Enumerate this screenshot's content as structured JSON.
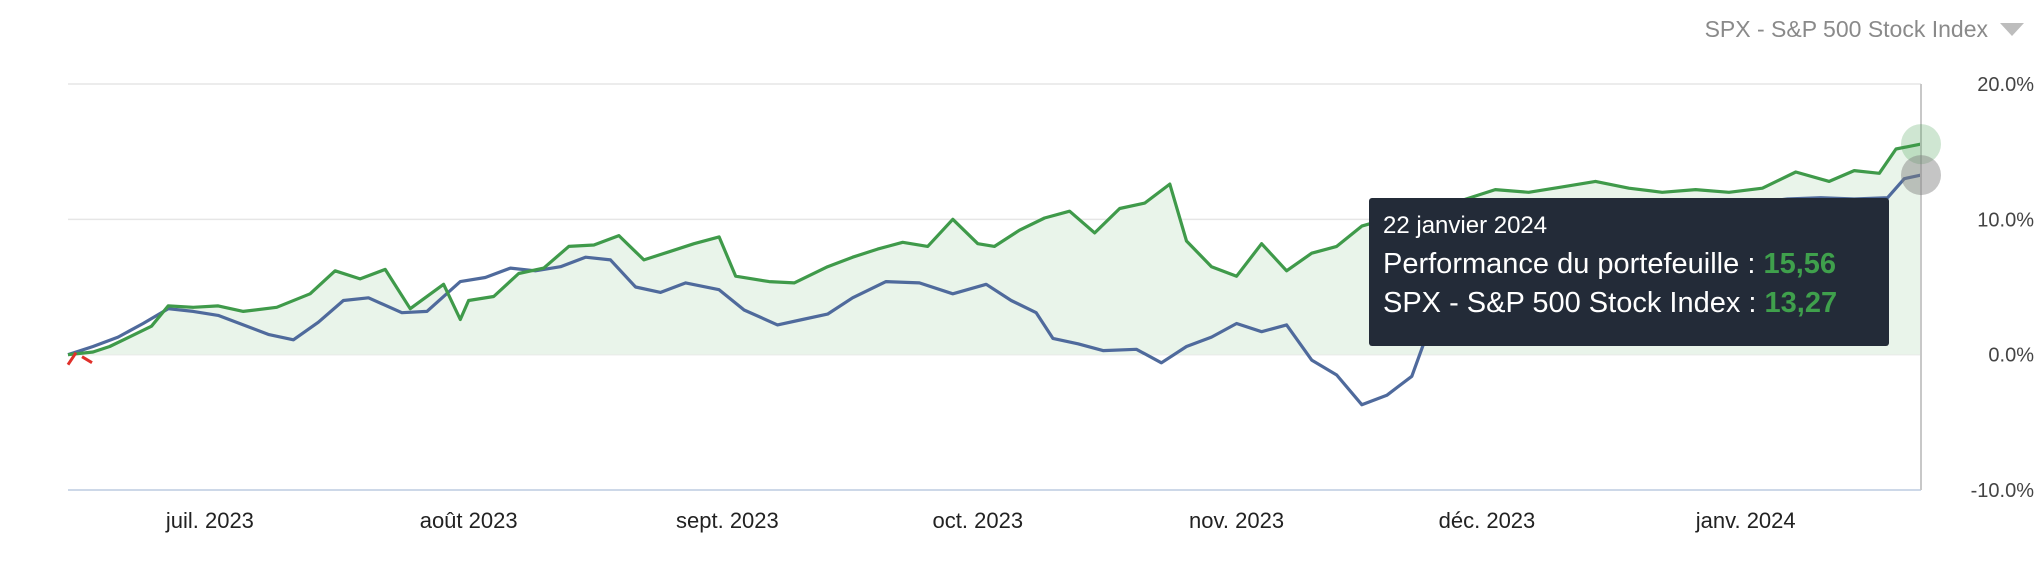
{
  "dropdown": {
    "label": "SPX - S&P 500 Stock Index",
    "icon": "caret-down-icon"
  },
  "tooltip": {
    "date": "22 janvier 2024",
    "rows": [
      {
        "label": "Performance du portefeuille : ",
        "value": "15,56"
      },
      {
        "label": "SPX - S&P 500 Stock Index : ",
        "value": "13,27"
      }
    ]
  },
  "colors": {
    "portfolio": "#3f9a4a",
    "index": "#4f6a9c",
    "negative_start": "#e0302a",
    "area": "#e9f4ea",
    "tooltip_bg": "#232b38",
    "grid": "#e6e6e6",
    "axis": "#cdd8e8"
  },
  "chart_data": {
    "type": "line",
    "title": "",
    "xlabel": "",
    "ylabel": "",
    "ylim": [
      -10,
      20
    ],
    "y_ticks": [
      "-10.0%",
      "0.0%",
      "10.0%",
      "20.0%"
    ],
    "y_tick_values": [
      -10,
      0,
      10,
      20
    ],
    "x_tick_labels": [
      "juil. 2023",
      "août 2023",
      "sept. 2023",
      "oct. 2023",
      "nov. 2023",
      "déc. 2023",
      "janv. 2024"
    ],
    "x_tick_dates": [
      "2023-07-01",
      "2023-08-01",
      "2023-09-01",
      "2023-10-01",
      "2023-11-01",
      "2023-12-01",
      "2024-01-01"
    ],
    "x_range": [
      "2023-06-14",
      "2024-01-22"
    ],
    "area_under": "Performance du portefeuille",
    "series": [
      {
        "name": "Performance du portefeuille",
        "points": [
          [
            "2023-06-14",
            0.0
          ],
          [
            "2023-06-17",
            0.2
          ],
          [
            "2023-06-19",
            0.6
          ],
          [
            "2023-06-21",
            1.2
          ],
          [
            "2023-06-24",
            2.1
          ],
          [
            "2023-06-26",
            3.6
          ],
          [
            "2023-06-29",
            3.5
          ],
          [
            "2023-07-02",
            3.6
          ],
          [
            "2023-07-05",
            3.2
          ],
          [
            "2023-07-09",
            3.5
          ],
          [
            "2023-07-13",
            4.5
          ],
          [
            "2023-07-16",
            6.2
          ],
          [
            "2023-07-19",
            5.6
          ],
          [
            "2023-07-22",
            6.3
          ],
          [
            "2023-07-25",
            3.4
          ],
          [
            "2023-07-29",
            5.2
          ],
          [
            "2023-07-31",
            2.6
          ],
          [
            "2023-08-01",
            4.0
          ],
          [
            "2023-08-04",
            4.3
          ],
          [
            "2023-08-07",
            6.0
          ],
          [
            "2023-08-10",
            6.4
          ],
          [
            "2023-08-13",
            8.0
          ],
          [
            "2023-08-16",
            8.1
          ],
          [
            "2023-08-19",
            8.8
          ],
          [
            "2023-08-22",
            7.0
          ],
          [
            "2023-08-25",
            7.6
          ],
          [
            "2023-08-28",
            8.2
          ],
          [
            "2023-08-31",
            8.7
          ],
          [
            "2023-09-02",
            5.8
          ],
          [
            "2023-09-06",
            5.4
          ],
          [
            "2023-09-09",
            5.3
          ],
          [
            "2023-09-13",
            6.5
          ],
          [
            "2023-09-16",
            7.2
          ],
          [
            "2023-09-19",
            7.8
          ],
          [
            "2023-09-22",
            8.3
          ],
          [
            "2023-09-25",
            8.0
          ],
          [
            "2023-09-28",
            10.0
          ],
          [
            "2023-10-01",
            8.2
          ],
          [
            "2023-10-03",
            8.0
          ],
          [
            "2023-10-06",
            9.2
          ],
          [
            "2023-10-09",
            10.1
          ],
          [
            "2023-10-12",
            10.6
          ],
          [
            "2023-10-15",
            9.0
          ],
          [
            "2023-10-18",
            10.8
          ],
          [
            "2023-10-21",
            11.2
          ],
          [
            "2023-10-24",
            12.6
          ],
          [
            "2023-10-26",
            8.4
          ],
          [
            "2023-10-29",
            6.5
          ],
          [
            "2023-11-01",
            5.8
          ],
          [
            "2023-11-04",
            8.2
          ],
          [
            "2023-11-07",
            6.2
          ],
          [
            "2023-11-10",
            7.5
          ],
          [
            "2023-11-13",
            8.0
          ],
          [
            "2023-11-16",
            9.5
          ],
          [
            "2023-11-20",
            10.2
          ],
          [
            "2023-11-24",
            10.8
          ],
          [
            "2023-11-28",
            11.4
          ],
          [
            "2023-12-02",
            12.2
          ],
          [
            "2023-12-06",
            12.0
          ],
          [
            "2023-12-10",
            12.4
          ],
          [
            "2023-12-14",
            12.8
          ],
          [
            "2023-12-18",
            12.3
          ],
          [
            "2023-12-22",
            12.0
          ],
          [
            "2023-12-26",
            12.2
          ],
          [
            "2023-12-30",
            12.0
          ],
          [
            "2024-01-03",
            12.3
          ],
          [
            "2024-01-07",
            13.5
          ],
          [
            "2024-01-11",
            12.8
          ],
          [
            "2024-01-14",
            13.6
          ],
          [
            "2024-01-17",
            13.4
          ],
          [
            "2024-01-19",
            15.2
          ],
          [
            "2024-01-22",
            15.56
          ]
        ]
      },
      {
        "name": "SPX - S&P 500 Stock Index",
        "points": [
          [
            "2023-06-14",
            0.0
          ],
          [
            "2023-06-17",
            0.6
          ],
          [
            "2023-06-20",
            1.3
          ],
          [
            "2023-06-23",
            2.3
          ],
          [
            "2023-06-26",
            3.4
          ],
          [
            "2023-06-29",
            3.2
          ],
          [
            "2023-07-02",
            2.9
          ],
          [
            "2023-07-05",
            2.2
          ],
          [
            "2023-07-08",
            1.5
          ],
          [
            "2023-07-11",
            1.1
          ],
          [
            "2023-07-14",
            2.4
          ],
          [
            "2023-07-17",
            4.0
          ],
          [
            "2023-07-20",
            4.2
          ],
          [
            "2023-07-24",
            3.1
          ],
          [
            "2023-07-27",
            3.2
          ],
          [
            "2023-07-31",
            5.4
          ],
          [
            "2023-08-03",
            5.7
          ],
          [
            "2023-08-06",
            6.4
          ],
          [
            "2023-08-09",
            6.2
          ],
          [
            "2023-08-12",
            6.5
          ],
          [
            "2023-08-15",
            7.2
          ],
          [
            "2023-08-18",
            7.0
          ],
          [
            "2023-08-21",
            5.0
          ],
          [
            "2023-08-24",
            4.6
          ],
          [
            "2023-08-27",
            5.3
          ],
          [
            "2023-08-31",
            4.8
          ],
          [
            "2023-09-03",
            3.3
          ],
          [
            "2023-09-07",
            2.2
          ],
          [
            "2023-09-10",
            2.6
          ],
          [
            "2023-09-13",
            3.0
          ],
          [
            "2023-09-16",
            4.2
          ],
          [
            "2023-09-20",
            5.4
          ],
          [
            "2023-09-24",
            5.3
          ],
          [
            "2023-09-28",
            4.5
          ],
          [
            "2023-10-02",
            5.2
          ],
          [
            "2023-10-05",
            4.0
          ],
          [
            "2023-10-08",
            3.1
          ],
          [
            "2023-10-10",
            1.2
          ],
          [
            "2023-10-13",
            0.8
          ],
          [
            "2023-10-16",
            0.3
          ],
          [
            "2023-10-20",
            0.4
          ],
          [
            "2023-10-23",
            -0.6
          ],
          [
            "2023-10-26",
            0.6
          ],
          [
            "2023-10-29",
            1.3
          ],
          [
            "2023-11-01",
            2.3
          ],
          [
            "2023-11-04",
            1.7
          ],
          [
            "2023-11-07",
            2.2
          ],
          [
            "2023-11-10",
            -0.4
          ],
          [
            "2023-11-13",
            -1.5
          ],
          [
            "2023-11-16",
            -3.7
          ],
          [
            "2023-11-19",
            -3.0
          ],
          [
            "2023-11-22",
            -1.6
          ],
          [
            "2023-11-24",
            1.8
          ],
          [
            "2023-11-27",
            2.1
          ],
          [
            "2023-11-30",
            2.6
          ],
          [
            "2023-12-02",
            2.4
          ],
          [
            "2023-12-05",
            3.0
          ],
          [
            "2023-12-09",
            5.5
          ],
          [
            "2023-12-13",
            7.8
          ],
          [
            "2023-12-17",
            9.6
          ],
          [
            "2023-12-21",
            10.8
          ],
          [
            "2023-12-25",
            11.2
          ],
          [
            "2023-12-29",
            11.4
          ],
          [
            "2024-01-02",
            11.2
          ],
          [
            "2024-01-06",
            11.5
          ],
          [
            "2024-01-10",
            11.6
          ],
          [
            "2024-01-14",
            11.5
          ],
          [
            "2024-01-18",
            11.6
          ],
          [
            "2024-01-20",
            13.0
          ],
          [
            "2024-01-22",
            13.27
          ]
        ]
      }
    ]
  }
}
